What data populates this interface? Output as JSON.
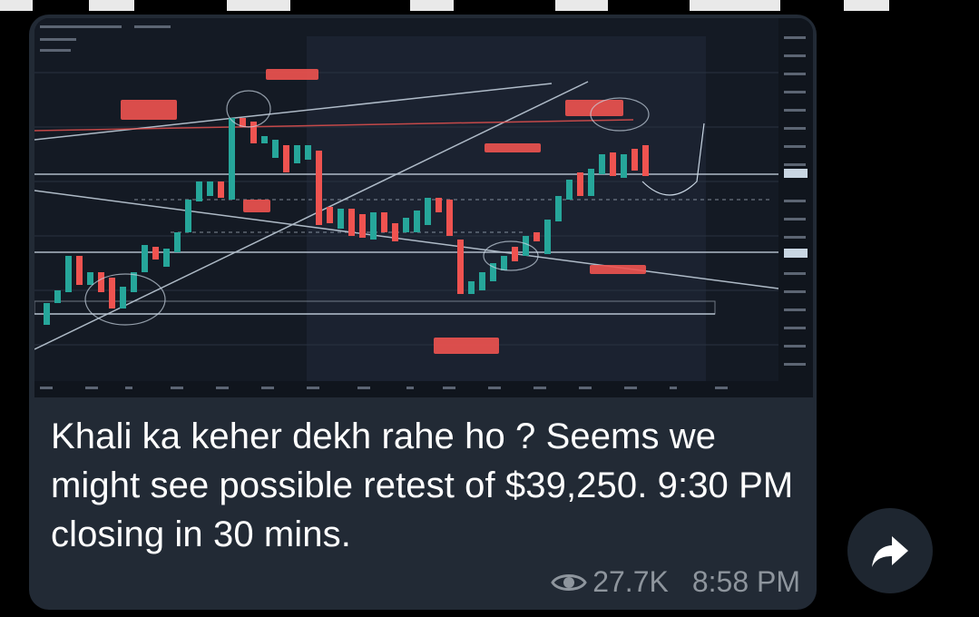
{
  "message": {
    "text": "Khali ka keher dekh rahe ho ? Seems we might see possible retest of $39,250. 9:30 PM closing in 30 mins.",
    "views": "27.7K",
    "time": "8:58 PM"
  },
  "icons": {
    "views": "eye-icon",
    "forward": "forward-arrow-icon"
  },
  "colors": {
    "bubble": "#222a35",
    "chart_bg": "#141a24",
    "candle_up": "#26a69a",
    "candle_down": "#ef5350",
    "text": "#ffffff",
    "meta": "#8e959d"
  }
}
